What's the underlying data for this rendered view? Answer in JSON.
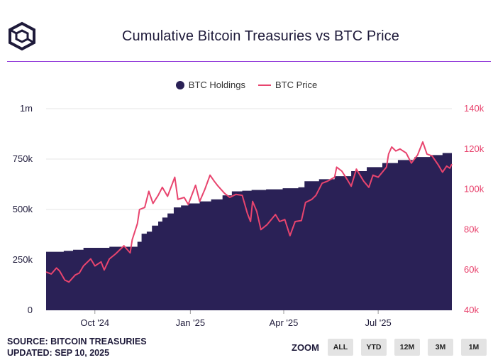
{
  "title": "Cumulative Bitcoin Treasuries vs BTC Price",
  "legend": {
    "holdings": "BTC Holdings",
    "price": "BTC Price"
  },
  "source": "SOURCE: BITCOIN TREASURIES",
  "updated": "UPDATED: SEP 10, 2025",
  "zoom": {
    "label": "ZOOM",
    "buttons": [
      "ALL",
      "YTD",
      "12M",
      "3M",
      "1M"
    ]
  },
  "colors": {
    "holdings": "#2a2156",
    "price": "#e8446e",
    "rule": "#8a2bd6"
  },
  "chart_data": {
    "type": "area",
    "title": "Cumulative Bitcoin Treasuries vs BTC Price",
    "x_tick_labels": [
      "Oct '24",
      "Jan '25",
      "Apr '25",
      "Jul '25"
    ],
    "x_tick_dates": [
      "2024-10-01",
      "2025-01-01",
      "2025-04-01",
      "2025-07-01"
    ],
    "x_range": [
      "2024-08-15",
      "2025-09-10"
    ],
    "y_left": {
      "label": "BTC Holdings",
      "range": [
        0,
        1000000
      ],
      "ticks": [
        0,
        250000,
        500000,
        750000,
        1000000
      ],
      "tick_labels": [
        "0",
        "250k",
        "500k",
        "750k",
        "1m"
      ]
    },
    "y_right": {
      "label": "BTC Price",
      "range": [
        40000,
        140000
      ],
      "ticks": [
        40000,
        60000,
        80000,
        100000,
        120000,
        140000
      ],
      "tick_labels": [
        "40k",
        "60k",
        "80k",
        "100k",
        "120k",
        "140k"
      ]
    },
    "series": [
      {
        "name": "BTC Holdings",
        "type": "area",
        "axis": "left",
        "points": [
          [
            "2024-08-15",
            290000
          ],
          [
            "2024-09-01",
            295000
          ],
          [
            "2024-09-10",
            300000
          ],
          [
            "2024-09-20",
            310000
          ],
          [
            "2024-10-15",
            315000
          ],
          [
            "2024-11-05",
            315000
          ],
          [
            "2024-11-11",
            340000
          ],
          [
            "2024-11-15",
            380000
          ],
          [
            "2024-11-20",
            390000
          ],
          [
            "2024-11-25",
            420000
          ],
          [
            "2024-12-01",
            440000
          ],
          [
            "2024-12-05",
            460000
          ],
          [
            "2024-12-10",
            480000
          ],
          [
            "2024-12-16",
            510000
          ],
          [
            "2024-12-23",
            520000
          ],
          [
            "2024-12-30",
            530000
          ],
          [
            "2025-01-10",
            540000
          ],
          [
            "2025-01-21",
            550000
          ],
          [
            "2025-02-01",
            570000
          ],
          [
            "2025-02-10",
            590000
          ],
          [
            "2025-02-20",
            593000
          ],
          [
            "2025-03-01",
            597000
          ],
          [
            "2025-03-15",
            600000
          ],
          [
            "2025-03-31",
            605000
          ],
          [
            "2025-04-15",
            610000
          ],
          [
            "2025-04-21",
            640000
          ],
          [
            "2025-05-05",
            650000
          ],
          [
            "2025-05-20",
            665000
          ],
          [
            "2025-06-05",
            690000
          ],
          [
            "2025-06-20",
            710000
          ],
          [
            "2025-07-05",
            730000
          ],
          [
            "2025-07-20",
            745000
          ],
          [
            "2025-08-05",
            760000
          ],
          [
            "2025-08-20",
            770000
          ],
          [
            "2025-09-01",
            780000
          ],
          [
            "2025-09-10",
            790000
          ]
        ]
      },
      {
        "name": "BTC Price",
        "type": "line",
        "axis": "right",
        "points": [
          [
            "2024-08-15",
            59000
          ],
          [
            "2024-08-20",
            58000
          ],
          [
            "2024-08-25",
            61000
          ],
          [
            "2024-08-28",
            59500
          ],
          [
            "2024-09-02",
            55000
          ],
          [
            "2024-09-06",
            54000
          ],
          [
            "2024-09-12",
            57500
          ],
          [
            "2024-09-16",
            58500
          ],
          [
            "2024-09-20",
            62000
          ],
          [
            "2024-09-27",
            65500
          ],
          [
            "2024-10-01",
            62000
          ],
          [
            "2024-10-07",
            64000
          ],
          [
            "2024-10-10",
            60000
          ],
          [
            "2024-10-15",
            65500
          ],
          [
            "2024-10-21",
            68000
          ],
          [
            "2024-10-29",
            72000
          ],
          [
            "2024-11-04",
            68500
          ],
          [
            "2024-11-06",
            75000
          ],
          [
            "2024-11-11",
            83000
          ],
          [
            "2024-11-13",
            90000
          ],
          [
            "2024-11-18",
            91000
          ],
          [
            "2024-11-22",
            99000
          ],
          [
            "2024-11-26",
            93000
          ],
          [
            "2024-12-01",
            97000
          ],
          [
            "2024-12-05",
            101000
          ],
          [
            "2024-12-10",
            96500
          ],
          [
            "2024-12-17",
            106000
          ],
          [
            "2024-12-20",
            95000
          ],
          [
            "2024-12-26",
            96000
          ],
          [
            "2024-12-30",
            92500
          ],
          [
            "2025-01-06",
            102000
          ],
          [
            "2025-01-10",
            94000
          ],
          [
            "2025-01-15",
            100000
          ],
          [
            "2025-01-20",
            107000
          ],
          [
            "2025-01-24",
            104000
          ],
          [
            "2025-01-27",
            102000
          ],
          [
            "2025-02-03",
            98000
          ],
          [
            "2025-02-08",
            96000
          ],
          [
            "2025-02-14",
            97500
          ],
          [
            "2025-02-20",
            97000
          ],
          [
            "2025-02-25",
            88000
          ],
          [
            "2025-02-28",
            84000
          ],
          [
            "2025-03-02",
            94000
          ],
          [
            "2025-03-06",
            89000
          ],
          [
            "2025-03-10",
            80000
          ],
          [
            "2025-03-16",
            82500
          ],
          [
            "2025-03-24",
            87500
          ],
          [
            "2025-03-28",
            84000
          ],
          [
            "2025-04-02",
            85000
          ],
          [
            "2025-04-07",
            77000
          ],
          [
            "2025-04-12",
            84000
          ],
          [
            "2025-04-18",
            84500
          ],
          [
            "2025-04-22",
            93500
          ],
          [
            "2025-04-28",
            95000
          ],
          [
            "2025-05-02",
            97000
          ],
          [
            "2025-05-08",
            103000
          ],
          [
            "2025-05-13",
            104000
          ],
          [
            "2025-05-20",
            106000
          ],
          [
            "2025-05-22",
            111000
          ],
          [
            "2025-05-27",
            109000
          ],
          [
            "2025-06-01",
            105000
          ],
          [
            "2025-06-05",
            101500
          ],
          [
            "2025-06-10",
            110000
          ],
          [
            "2025-06-17",
            104000
          ],
          [
            "2025-06-22",
            101000
          ],
          [
            "2025-06-26",
            107000
          ],
          [
            "2025-07-01",
            106000
          ],
          [
            "2025-07-09",
            111000
          ],
          [
            "2025-07-11",
            117500
          ],
          [
            "2025-07-14",
            121000
          ],
          [
            "2025-07-18",
            119000
          ],
          [
            "2025-07-22",
            120000
          ],
          [
            "2025-07-28",
            118000
          ],
          [
            "2025-08-02",
            113000
          ],
          [
            "2025-08-08",
            117000
          ],
          [
            "2025-08-13",
            123500
          ],
          [
            "2025-08-17",
            117500
          ],
          [
            "2025-08-22",
            116500
          ],
          [
            "2025-08-28",
            112000
          ],
          [
            "2025-09-01",
            108500
          ],
          [
            "2025-09-05",
            111500
          ],
          [
            "2025-09-08",
            110500
          ],
          [
            "2025-09-10",
            112500
          ]
        ]
      }
    ]
  }
}
